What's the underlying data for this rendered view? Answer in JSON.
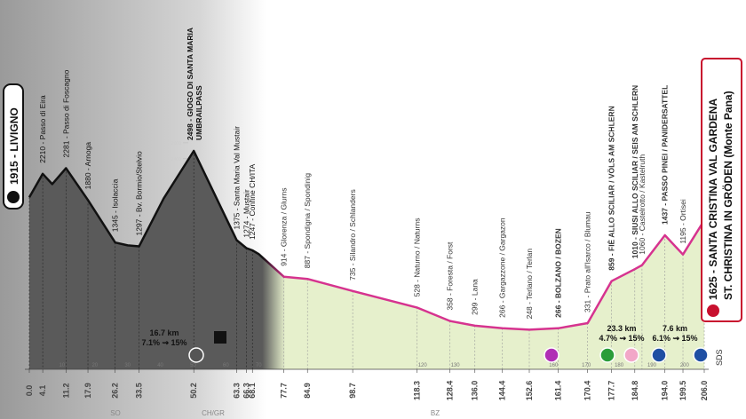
{
  "chart_data": {
    "type": "area",
    "color": "#d6338f",
    "start_color": "#111111",
    "fill": "#e6f0cc",
    "start_fill": "#5a5a5a",
    "xlim": [
      0,
      206
    ],
    "ylim": [
      -250,
      2800
    ],
    "yticks": [
      1000,
      1200,
      1400,
      1600,
      1800,
      2000,
      2200,
      2400,
      2600
    ],
    "x": [
      0,
      4.1,
      7,
      11.2,
      17.9,
      26.2,
      30,
      33.5,
      41,
      50.2,
      56,
      63.3,
      66.3,
      68.1,
      70,
      77.7,
      84.9,
      98.7,
      118.3,
      128.4,
      136.0,
      144.4,
      152.6,
      161.4,
      170.4,
      177.7,
      184.8,
      187,
      194.0,
      199.5,
      206.0
    ],
    "values": [
      1915,
      2210,
      2080,
      2281,
      1880,
      1345,
      1310,
      1297,
      1900,
      2498,
      2000,
      1375,
      1274,
      1247,
      1200,
      914,
      887,
      735,
      528,
      358,
      299,
      266,
      248,
      266,
      331,
      859,
      1010,
      1060,
      1437,
      1195,
      1625
    ],
    "point_labels": [
      "1915 - LIVIGNO",
      "2210 - Passo di Eira",
      null,
      "2281 - Passo di Foscagno",
      "1880 - Arnoga",
      "1345 - Isolaccia",
      null,
      "1297 - Bv. Bormio/Stelvio",
      null,
      [
        "2498 - GIOGO DI SANTA MARIA",
        "UMBRAILPASS"
      ],
      null,
      "1375 - Santa Maria Val Mustair",
      "1274 - Mustair",
      "1247 - Confine CH/ITA",
      null,
      "914 - Glorenza / Glurns",
      "887 - Spondigna / Spondinig",
      "735 - Silandro / Schlanders",
      "528 - Naturno / Naturns",
      "358 - Foresta / Forst",
      "299 - Lana",
      "266 - Gargazzone / Gargazon",
      "248 - Terlano / Terlan",
      "266 - BOLZANO / BOZEN",
      "331 - Prato all'Isarco / Blumau",
      "859 - FIÈ ALLO SCILIAR / VÖLS AM SCHLERN",
      "1010 - SIUSI ALLO SCILIAR / SEIS AM SCHLERN",
      "1060 - Castelrotto / Kastelruth",
      "1437 - PASSO PINEI / PANIDERSATTEL",
      "1195 - Ortisei",
      [
        "1625 - SANTA CRISTINA VAL GARDENA",
        "ST. CHRISTINA IN GRÖDEN (Monte Pana)"
      ]
    ],
    "xticks": [
      {
        "value": 0,
        "label": "0.0"
      },
      4.1,
      11.2,
      17.9,
      26.2,
      33.5,
      50.2,
      63.3,
      66.3,
      68.1,
      77.7,
      84.9,
      98.7,
      118.3,
      128.4,
      {
        "value": 136,
        "label": "136.0"
      },
      144.4,
      152.6,
      161.4,
      170.4,
      177.7,
      184.8,
      {
        "value": 194,
        "label": "194.0"
      },
      199.5,
      {
        "value": 206,
        "label": "206.0"
      }
    ],
    "minor_xticks": [
      10,
      20,
      30,
      40,
      50,
      60,
      70,
      120,
      130,
      160,
      170,
      180,
      190,
      200
    ],
    "climbs": [
      {
        "length": "16.7 km",
        "gradient": "7.1% ⇝ 15%"
      },
      {
        "length": "23.3 km",
        "gradient": "4.7% ⇝ 15%"
      },
      {
        "length": "7.6 km",
        "gradient": "6.1% ⇝ 15%"
      }
    ],
    "regions": [
      "SO",
      "CH/GR",
      "BZ"
    ],
    "finish_mark": "SDS"
  }
}
